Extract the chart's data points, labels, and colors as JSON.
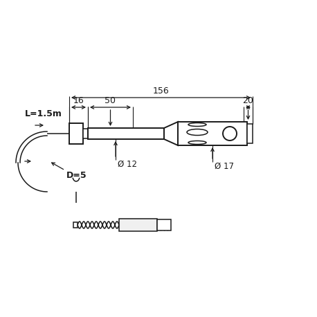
{
  "bg_color": "#ffffff",
  "line_color": "#1a1a1a",
  "fig_size": [
    4.58,
    4.58
  ],
  "dpi": 100,
  "annotations": {
    "dim_156": "156",
    "dim_16": "16",
    "dim_50": "50",
    "dim_20": "20",
    "dim_12": "Ø 12",
    "dim_17": "Ø 17",
    "label_L": "L=1.5m",
    "label_D": "D=5"
  }
}
